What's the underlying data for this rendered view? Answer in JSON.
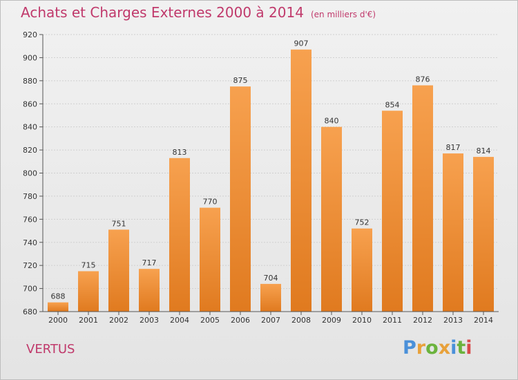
{
  "chart_data": {
    "type": "bar",
    "title": "Achats et Charges Externes 2000 à 2014",
    "subtitle": "(en milliers d'€)",
    "categories": [
      "2000",
      "2001",
      "2002",
      "2003",
      "2004",
      "2005",
      "2006",
      "2007",
      "2008",
      "2009",
      "2010",
      "2011",
      "2012",
      "2013",
      "2014"
    ],
    "values": [
      688,
      715,
      751,
      717,
      813,
      770,
      875,
      704,
      907,
      840,
      752,
      854,
      876,
      817,
      814
    ],
    "ylim": [
      680,
      920
    ],
    "yticks": [
      680,
      700,
      720,
      740,
      760,
      780,
      800,
      820,
      840,
      860,
      880,
      900,
      920
    ],
    "grid": true,
    "bar_color": "#f08a30"
  },
  "footer": {
    "commune": "VERTUS",
    "logo_letters": [
      "P",
      "r",
      "o",
      "x",
      "i",
      "t",
      "i"
    ],
    "logo_colors": [
      "#4a90d9",
      "#e8a13a",
      "#6bb33d",
      "#e8a13a",
      "#4a90d9",
      "#6bb33d",
      "#d94a4a"
    ]
  },
  "colors": {
    "title": "#c0396b",
    "axis": "#555555",
    "grid": "#cfcfcf"
  }
}
